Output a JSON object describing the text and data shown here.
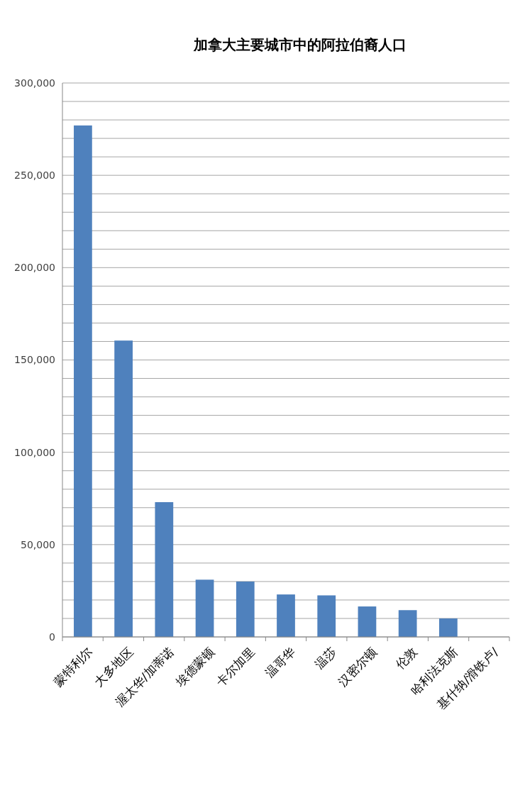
{
  "chart_data": {
    "type": "bar",
    "title": "加拿大主要城市中的阿拉伯裔人口",
    "categories": [
      "蒙特利尔",
      "大多地区",
      "渥太华/加蒂诺",
      "埃德蒙顿",
      "卡尔加里",
      "温哥华",
      "温莎",
      "汉密尔顿",
      "伦敦",
      "哈利法克斯",
      "基什纳/滑铁卢/"
    ],
    "values": [
      277000,
      160500,
      73000,
      31000,
      30000,
      23000,
      22500,
      16500,
      14500,
      10000,
      null
    ],
    "color": "#4f81bd",
    "ylim": [
      0,
      300000
    ],
    "yticks": [
      0,
      {
        "value": 10000,
        "label": null
      },
      {
        "value": 20000,
        "label": null
      },
      {
        "value": 30000,
        "label": null
      },
      {
        "value": 40000,
        "label": null
      },
      {
        "value": 50000,
        "label": "50,000"
      },
      {
        "value": 60000,
        "label": null
      },
      {
        "value": 70000,
        "label": null
      },
      {
        "value": 80000,
        "label": null
      },
      {
        "value": 90000,
        "label": null
      },
      {
        "value": 100000,
        "label": "100,000"
      },
      {
        "value": 110000,
        "label": null
      },
      {
        "value": 120000,
        "label": null
      },
      {
        "value": 130000,
        "label": null
      },
      {
        "value": 140000,
        "label": null
      },
      {
        "value": 150000,
        "label": "150,000"
      },
      {
        "value": 160000,
        "label": null
      },
      {
        "value": 170000,
        "label": null
      },
      {
        "value": 180000,
        "label": null
      },
      {
        "value": 190000,
        "label": null
      },
      {
        "value": 200000,
        "label": "200,000"
      },
      {
        "value": 210000,
        "label": null
      },
      {
        "value": 220000,
        "label": null
      },
      {
        "value": 230000,
        "label": null
      },
      {
        "value": 240000,
        "label": null
      },
      {
        "value": 250000,
        "label": "250,000"
      },
      {
        "value": 260000,
        "label": null
      },
      {
        "value": 270000,
        "label": null
      },
      {
        "value": 280000,
        "label": null
      },
      {
        "value": 290000,
        "label": null
      },
      {
        "value": 300000,
        "label": "300,000"
      }
    ],
    "grid": true
  }
}
